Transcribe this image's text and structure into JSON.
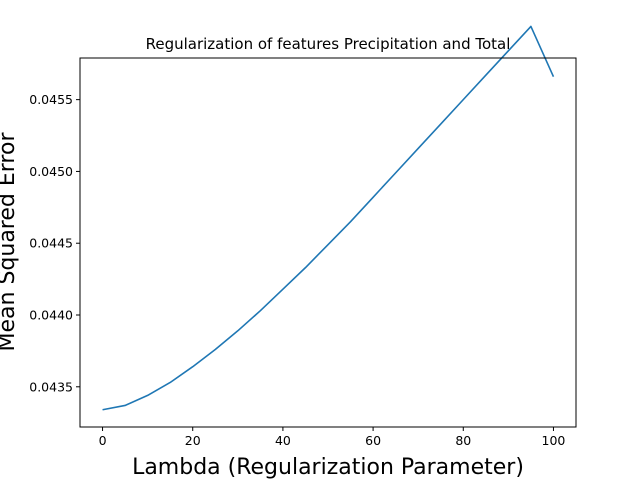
{
  "chart_data": {
    "type": "line",
    "title": "Regularization of features Precipitation and Total",
    "xlabel": "Lambda (Regularization Parameter)",
    "ylabel": "Mean Squared Error",
    "xlim": [
      -5,
      105
    ],
    "ylim": [
      0.04322,
      0.04579
    ],
    "x_ticks": [
      0,
      20,
      40,
      60,
      80,
      100
    ],
    "x_tick_labels": [
      "0",
      "20",
      "40",
      "60",
      "80",
      "100"
    ],
    "y_ticks": [
      0.0435,
      0.044,
      0.0445,
      0.045,
      0.0455
    ],
    "y_tick_labels": [
      "0.0435",
      "0.0440",
      "0.0445",
      "0.0450",
      "0.0455"
    ],
    "grid": false,
    "legend": "none",
    "series": [
      {
        "color": "#1f77b4",
        "x": [
          0,
          5,
          10,
          15,
          20,
          25,
          30,
          35,
          40,
          45,
          50,
          55,
          60,
          65,
          70,
          75,
          80,
          85,
          90,
          95,
          100
        ],
        "y": [
          0.04334,
          0.04337,
          0.04344,
          0.04353,
          0.04364,
          0.04376,
          0.04389,
          0.04403,
          0.04418,
          0.04433,
          0.04449,
          0.04465,
          0.04482,
          0.04499,
          0.04516,
          0.04533,
          0.0455,
          0.04567,
          0.04584,
          0.04601,
          0.04566
        ]
      }
    ]
  }
}
